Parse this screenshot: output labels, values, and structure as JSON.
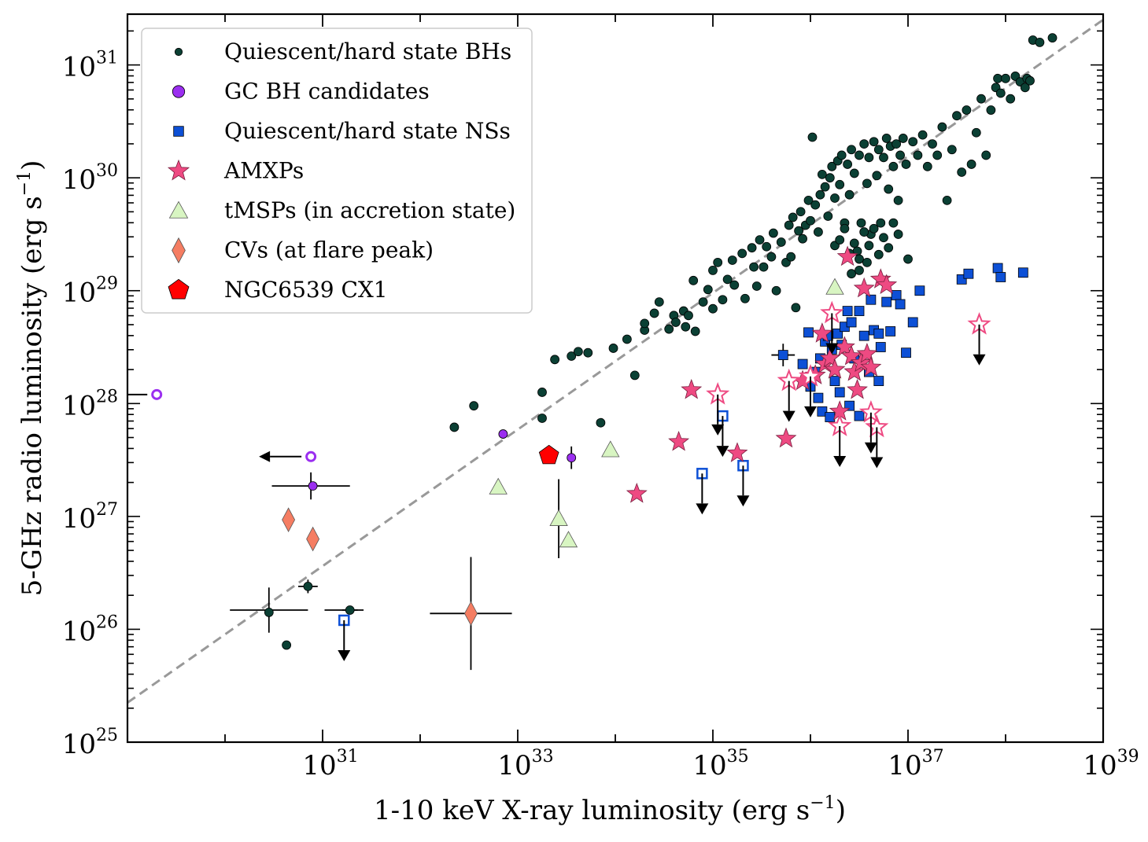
{
  "chart_data": {
    "type": "scatter",
    "title": "",
    "xlabel": "1-10 keV X-ray luminosity (erg s",
    "xlabel_sup": "−1",
    "xlabel_end": ")",
    "ylabel": "5-GHz radio luminosity (erg s",
    "ylabel_sup": "−1",
    "ylabel_end": ")",
    "x_scale": "log",
    "y_scale": "log",
    "xlim_log10": [
      29,
      39
    ],
    "ylim_log10": [
      25,
      31.45
    ],
    "x_ticks": [
      {
        "base": "10",
        "exp": "31",
        "log10": 31
      },
      {
        "base": "10",
        "exp": "33",
        "log10": 33
      },
      {
        "base": "10",
        "exp": "35",
        "log10": 35
      },
      {
        "base": "10",
        "exp": "37",
        "log10": 37
      },
      {
        "base": "10",
        "exp": "39",
        "log10": 39
      }
    ],
    "y_ticks": [
      {
        "base": "10",
        "exp": "25",
        "log10": 25
      },
      {
        "base": "10",
        "exp": "26",
        "log10": 26
      },
      {
        "base": "10",
        "exp": "27",
        "log10": 27
      },
      {
        "base": "10",
        "exp": "28",
        "log10": 28
      },
      {
        "base": "10",
        "exp": "29",
        "log10": 29
      },
      {
        "base": "10",
        "exp": "30",
        "log10": 30
      },
      {
        "base": "10",
        "exp": "31",
        "log10": 31
      }
    ],
    "grid": false,
    "legend_position": "top-left",
    "reference_line": {
      "style": "dashed",
      "color": "#999999",
      "x_log10": [
        29,
        39
      ],
      "y_log10": [
        25.35,
        31.4
      ]
    },
    "series": [
      {
        "name": "Quiescent/hard state BHs",
        "marker": "circle",
        "color": "#0b4034",
        "points_log10": [
          [
            30.45,
            26.15
          ],
          [
            30.63,
            25.86
          ],
          [
            30.85,
            26.38
          ],
          [
            31.28,
            26.17
          ],
          [
            32.35,
            27.79
          ],
          [
            32.55,
            27.98
          ],
          [
            33.25,
            27.87
          ],
          [
            33.25,
            28.1
          ],
          [
            33.38,
            28.39
          ],
          [
            33.55,
            28.42
          ],
          [
            33.62,
            28.46
          ],
          [
            33.72,
            28.45
          ],
          [
            33.85,
            27.83
          ],
          [
            33.98,
            28.49
          ],
          [
            34.12,
            28.57
          ],
          [
            34.2,
            28.25
          ],
          [
            34.3,
            28.65
          ],
          [
            34.3,
            28.71
          ],
          [
            34.4,
            28.8
          ],
          [
            34.45,
            28.9
          ],
          [
            34.55,
            28.66
          ],
          [
            34.6,
            28.78
          ],
          [
            34.62,
            28.72
          ],
          [
            34.7,
            28.82
          ],
          [
            34.72,
            28.68
          ],
          [
            34.75,
            28.78
          ],
          [
            34.8,
            29.09
          ],
          [
            34.82,
            28.64
          ],
          [
            34.9,
            28.9
          ],
          [
            34.95,
            29.01
          ],
          [
            35.0,
            28.84
          ],
          [
            35.0,
            29.18
          ],
          [
            35.05,
            29.25
          ],
          [
            35.1,
            28.92
          ],
          [
            35.15,
            29.1
          ],
          [
            35.2,
            29.27
          ],
          [
            35.22,
            29.05
          ],
          [
            35.3,
            29.33
          ],
          [
            35.33,
            28.93
          ],
          [
            35.4,
            29.38
          ],
          [
            35.42,
            29.21
          ],
          [
            35.45,
            29.04
          ],
          [
            35.48,
            29.45
          ],
          [
            35.52,
            29.21
          ],
          [
            35.55,
            29.39
          ],
          [
            35.6,
            29.3
          ],
          [
            35.62,
            29.51
          ],
          [
            35.65,
            29.0
          ],
          [
            35.7,
            29.43
          ],
          [
            35.75,
            29.25
          ],
          [
            35.78,
            29.58
          ],
          [
            35.8,
            29.3
          ],
          [
            35.82,
            29.65
          ],
          [
            35.85,
            28.85
          ],
          [
            35.88,
            29.53
          ],
          [
            35.9,
            29.7
          ],
          [
            35.92,
            29.46
          ],
          [
            35.95,
            29.58
          ],
          [
            35.98,
            29.8
          ],
          [
            36.0,
            29.62
          ],
          [
            36.02,
            30.36
          ],
          [
            36.05,
            29.76
          ],
          [
            36.08,
            29.52
          ],
          [
            36.1,
            29.85
          ],
          [
            36.12,
            30.03
          ],
          [
            36.15,
            29.92
          ],
          [
            36.18,
            29.66
          ],
          [
            36.2,
            30.0
          ],
          [
            36.22,
            30.1
          ],
          [
            36.25,
            29.82
          ],
          [
            36.28,
            30.15
          ],
          [
            36.3,
            29.94
          ],
          [
            36.32,
            30.2
          ],
          [
            36.35,
            29.6
          ],
          [
            36.38,
            30.12
          ],
          [
            36.4,
            29.85
          ],
          [
            36.42,
            30.25
          ],
          [
            36.45,
            30.04
          ],
          [
            36.48,
            29.35
          ],
          [
            36.5,
            30.2
          ],
          [
            36.52,
            29.6
          ],
          [
            36.55,
            30.3
          ],
          [
            36.58,
            29.95
          ],
          [
            36.6,
            30.18
          ],
          [
            36.62,
            29.5
          ],
          [
            36.65,
            30.32
          ],
          [
            36.68,
            30.02
          ],
          [
            36.7,
            30.25
          ],
          [
            36.72,
            29.6
          ],
          [
            36.75,
            30.18
          ],
          [
            36.78,
            30.35
          ],
          [
            36.8,
            29.9
          ],
          [
            36.82,
            30.28
          ],
          [
            36.85,
            30.1
          ],
          [
            36.88,
            30.3
          ],
          [
            36.9,
            29.8
          ],
          [
            36.92,
            30.2
          ],
          [
            36.95,
            30.35
          ],
          [
            36.98,
            30.12
          ],
          [
            37.0,
            29.28
          ],
          [
            37.05,
            30.32
          ],
          [
            37.1,
            30.2
          ],
          [
            37.15,
            30.38
          ],
          [
            37.2,
            30.1
          ],
          [
            37.25,
            30.3
          ],
          [
            37.3,
            30.2
          ],
          [
            37.35,
            30.45
          ],
          [
            37.4,
            29.8
          ],
          [
            37.45,
            30.25
          ],
          [
            37.5,
            30.55
          ],
          [
            37.55,
            30.05
          ],
          [
            37.6,
            30.6
          ],
          [
            37.65,
            30.12
          ],
          [
            37.7,
            30.4
          ],
          [
            37.75,
            30.7
          ],
          [
            37.8,
            30.2
          ],
          [
            37.85,
            30.6
          ],
          [
            37.9,
            30.8
          ],
          [
            37.92,
            30.88
          ],
          [
            37.95,
            30.75
          ],
          [
            38.0,
            30.88
          ],
          [
            38.05,
            30.7
          ],
          [
            38.1,
            30.9
          ],
          [
            38.15,
            30.85
          ],
          [
            38.2,
            30.8
          ],
          [
            38.22,
            30.88
          ],
          [
            38.25,
            30.86
          ],
          [
            38.28,
            31.22
          ],
          [
            38.35,
            31.2
          ],
          [
            38.48,
            31.24
          ],
          [
            36.25,
            29.4
          ],
          [
            36.3,
            29.45
          ],
          [
            36.35,
            29.55
          ],
          [
            36.4,
            29.33
          ],
          [
            36.45,
            29.42
          ],
          [
            36.5,
            29.28
          ],
          [
            36.55,
            29.52
          ],
          [
            36.6,
            29.4
          ],
          [
            36.65,
            29.55
          ],
          [
            36.7,
            29.32
          ],
          [
            36.75,
            29.47
          ],
          [
            36.8,
            29.38
          ],
          [
            36.85,
            29.6
          ],
          [
            36.9,
            29.5
          ],
          [
            36.42,
            29.15
          ],
          [
            36.5,
            29.18
          ],
          [
            36.58,
            29.25
          ]
        ]
      },
      {
        "name": "GC BH candidates",
        "marker": "circle",
        "color": "#9b2ff0",
        "points_log10": [
          [
            32.85,
            27.73
          ],
          [
            33.55,
            27.52
          ],
          [
            30.9,
            27.27
          ]
        ],
        "upper_limits_x_log10": [
          [
            29.3,
            28.08
          ],
          [
            30.88,
            27.53
          ]
        ]
      },
      {
        "name": "Quiescent/hard state NSs",
        "marker": "square",
        "color": "#0d50d6",
        "points_log10": [
          [
            35.72,
            28.43
          ],
          [
            35.98,
            28.63
          ],
          [
            36.05,
            28.28
          ],
          [
            36.1,
            28.4
          ],
          [
            36.15,
            28.55
          ],
          [
            36.18,
            28.6
          ],
          [
            36.22,
            28.48
          ],
          [
            36.25,
            28.2
          ],
          [
            36.28,
            28.62
          ],
          [
            36.32,
            28.52
          ],
          [
            36.35,
            28.68
          ],
          [
            36.38,
            28.82
          ],
          [
            36.42,
            28.72
          ],
          [
            36.45,
            28.4
          ],
          [
            36.5,
            28.82
          ],
          [
            36.55,
            28.6
          ],
          [
            36.62,
            28.92
          ],
          [
            36.65,
            28.65
          ],
          [
            36.7,
            28.62
          ],
          [
            36.72,
            28.5
          ],
          [
            36.78,
            28.9
          ],
          [
            36.82,
            28.64
          ],
          [
            36.88,
            28.96
          ],
          [
            36.92,
            28.88
          ],
          [
            36.98,
            28.45
          ],
          [
            37.05,
            28.72
          ],
          [
            37.12,
            29.0
          ],
          [
            37.55,
            29.1
          ],
          [
            37.62,
            29.15
          ],
          [
            37.92,
            29.2
          ],
          [
            37.95,
            29.12
          ],
          [
            38.18,
            29.16
          ],
          [
            35.92,
            28.35
          ],
          [
            36.0,
            28.15
          ],
          [
            36.08,
            28.05
          ],
          [
            36.12,
            27.93
          ],
          [
            36.2,
            27.88
          ],
          [
            36.3,
            28.1
          ],
          [
            36.4,
            27.98
          ],
          [
            36.5,
            27.89
          ],
          [
            36.6,
            28.28
          ],
          [
            36.7,
            28.2
          ]
        ],
        "upper_limits_y_log10": [
          [
            31.22,
            26.08
          ],
          [
            34.89,
            27.38
          ],
          [
            35.31,
            27.45
          ],
          [
            35.1,
            27.89
          ]
        ]
      },
      {
        "name": "AMXPs",
        "marker": "star",
        "color": "#ee4a82",
        "points_log10": [
          [
            34.22,
            27.2
          ],
          [
            34.65,
            27.66
          ],
          [
            34.78,
            28.12
          ],
          [
            35.25,
            27.56
          ],
          [
            35.75,
            27.69
          ],
          [
            35.92,
            28.2
          ],
          [
            36.05,
            28.25
          ],
          [
            36.15,
            28.35
          ],
          [
            36.2,
            28.4
          ],
          [
            36.25,
            28.3
          ],
          [
            36.35,
            28.5
          ],
          [
            36.42,
            28.42
          ],
          [
            36.45,
            28.28
          ],
          [
            36.52,
            28.36
          ],
          [
            36.58,
            28.44
          ],
          [
            36.62,
            28.32
          ],
          [
            36.72,
            29.1
          ],
          [
            36.78,
            29.05
          ],
          [
            36.55,
            29.02
          ],
          [
            36.48,
            28.12
          ],
          [
            36.38,
            29.3
          ],
          [
            36.12,
            28.62
          ],
          [
            36.3,
            27.93
          ]
        ],
        "upper_limits_y_log10": [
          [
            35.05,
            28.08
          ],
          [
            35.78,
            28.2
          ],
          [
            36.0,
            28.24
          ],
          [
            36.3,
            27.8
          ],
          [
            36.68,
            27.79
          ],
          [
            36.62,
            27.92
          ],
          [
            37.73,
            28.7
          ],
          [
            36.22,
            28.8
          ]
        ]
      },
      {
        "name": "tMSPs (in accretion state)",
        "marker": "triangle",
        "color": "#d8f5c2",
        "points_log10": [
          [
            32.8,
            27.26
          ],
          [
            33.42,
            26.98
          ],
          [
            33.52,
            26.79
          ],
          [
            33.95,
            27.59
          ],
          [
            36.25,
            29.03
          ]
        ]
      },
      {
        "name": "CVs (at flare peak)",
        "marker": "diamond",
        "color": "#f57d62",
        "points_log10": [
          [
            30.65,
            26.97
          ],
          [
            30.9,
            26.8
          ],
          [
            32.52,
            26.14
          ]
        ]
      },
      {
        "name": "NGC6539 CX1",
        "marker": "pentagon",
        "color": "#ff0000",
        "points_log10": [
          [
            33.32,
            27.54
          ]
        ]
      }
    ]
  }
}
